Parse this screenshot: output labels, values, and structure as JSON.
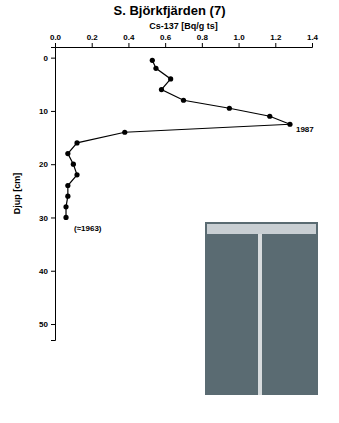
{
  "chart_data": {
    "type": "line",
    "title": "S. Björkfjärden (7)",
    "x_label": "Cs-137 [Bq/g ts]",
    "y_label": "Djup [cm]",
    "x": [
      0.53,
      0.55,
      0.63,
      0.58,
      0.7,
      0.95,
      1.17,
      1.28,
      0.38,
      0.12,
      0.07,
      0.1,
      0.12,
      0.07,
      0.07,
      0.06,
      0.06
    ],
    "values": [
      0.5,
      2,
      4,
      6,
      8,
      9.5,
      11,
      12.5,
      14,
      16,
      18,
      20,
      22,
      24,
      26,
      28,
      30
    ],
    "xlim": [
      0,
      1.4
    ],
    "xticks": [
      {
        "value": 0,
        "label": "0.0"
      },
      0.2,
      0.4,
      0.6,
      0.8,
      {
        "value": 1,
        "label": "1.0"
      },
      1.2,
      1.4
    ],
    "ylim": [
      53,
      -2
    ],
    "yticks": [
      0,
      10,
      20,
      30,
      40,
      50
    ],
    "color": "#000000",
    "marker": "circle",
    "line_style": "solid",
    "annotations": [
      "1987",
      "(≈1963)"
    ]
  }
}
